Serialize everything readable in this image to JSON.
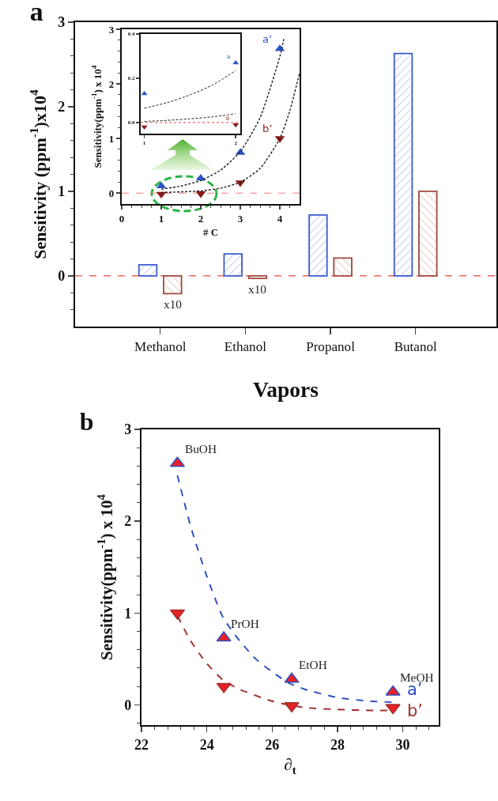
{
  "chart_data": [
    {
      "type": "bar",
      "title": "a",
      "xlabel": "Vapors",
      "ylabel": "Sensitivity (ppm$^{-1}$)x10$^{4}$",
      "categories": [
        "Methanol",
        "Ethanol",
        "Propanol",
        "Butanol"
      ],
      "series": [
        {
          "color": "#3b5bd0",
          "values": [
            0.13,
            0.26,
            0.72,
            2.63
          ]
        },
        {
          "color": "#a4473c",
          "values": [
            -0.21,
            -0.03,
            0.21,
            1.0
          ]
        }
      ],
      "ylim": [
        -0.6,
        3
      ],
      "yticks": [
        {
          "value": -0.4,
          "label": null
        },
        {
          "value": -0.2,
          "label": null
        },
        0,
        {
          "value": 0.2,
          "label": null
        },
        {
          "value": 0.4,
          "label": null
        },
        {
          "value": 0.6,
          "label": null
        },
        {
          "value": 0.8,
          "label": null
        },
        1,
        {
          "value": 1.2,
          "label": null
        },
        {
          "value": 1.4,
          "label": null
        },
        {
          "value": 1.6,
          "label": null
        },
        {
          "value": 1.8,
          "label": null
        },
        2,
        {
          "value": 2.2,
          "label": null
        },
        {
          "value": 2.4,
          "label": null
        },
        {
          "value": 2.6,
          "label": null
        },
        {
          "value": 2.8,
          "label": null
        },
        3
      ],
      "ref_lines": [
        {
          "axis": "y",
          "value": 0,
          "color": "#f0665c",
          "line_style": "dashed"
        }
      ],
      "annotations": [
        {
          "text": "x10",
          "x": "Methanol",
          "y": -0.21
        },
        {
          "text": "x10",
          "x": "Ethanol",
          "y": -0.03
        }
      ]
    },
    {
      "type": "scatter",
      "xlabel": "# C",
      "ylabel": "Sensitivity(ppm$^{-1}$) x 10$^{4}$",
      "marker": "triangle",
      "series": [
        {
          "name": "a’",
          "color": "#2f55c8",
          "x": [
            1,
            2,
            3,
            4
          ],
          "values": [
            0.13,
            0.27,
            0.74,
            2.64
          ]
        },
        {
          "name": "b’",
          "color": "#8b1a1a",
          "x": [
            1,
            2,
            3,
            4
          ],
          "values": [
            -0.02,
            -0.01,
            0.19,
            1.0
          ]
        },
        {
          "type": "line",
          "marker": "none",
          "color": "#222222",
          "line_style": "dashed",
          "x": [
            1,
            1.5,
            2,
            2.5,
            3,
            3.5,
            4,
            4.1
          ],
          "values": [
            0.07,
            0.13,
            0.23,
            0.42,
            0.76,
            1.38,
            2.5,
            2.82
          ]
        },
        {
          "type": "line",
          "marker": "none",
          "color": "#222222",
          "line_style": "dashed",
          "x": [
            1,
            2,
            2.5,
            3,
            3.5,
            4,
            4.25,
            4.5
          ],
          "values": [
            0.01,
            0.04,
            0.09,
            0.2,
            0.45,
            1.0,
            1.5,
            2.2
          ]
        }
      ],
      "xlim": [
        0,
        4.5
      ],
      "xticks": [
        0,
        {
          "value": 0.25,
          "label": null
        },
        {
          "value": 0.5,
          "label": null
        },
        {
          "value": 0.75,
          "label": null
        },
        1,
        {
          "value": 1.25,
          "label": null
        },
        {
          "value": 1.5,
          "label": null
        },
        {
          "value": 1.75,
          "label": null
        },
        2,
        {
          "value": 2.25,
          "label": null
        },
        {
          "value": 2.5,
          "label": null
        },
        {
          "value": 2.75,
          "label": null
        },
        3,
        {
          "value": 3.25,
          "label": null
        },
        {
          "value": 3.5,
          "label": null
        },
        {
          "value": 3.75,
          "label": null
        },
        4,
        {
          "value": 4.25,
          "label": null
        }
      ],
      "ylim": [
        -0.2,
        3
      ],
      "yticks": [
        0,
        {
          "value": 0.2,
          "label": null
        },
        {
          "value": 0.4,
          "label": null
        },
        {
          "value": 0.6,
          "label": null
        },
        {
          "value": 0.8,
          "label": null
        },
        1,
        {
          "value": 1.2,
          "label": null
        },
        {
          "value": 1.4,
          "label": null
        },
        {
          "value": 1.6,
          "label": null
        },
        {
          "value": 1.8,
          "label": null
        },
        2,
        {
          "value": 2.2,
          "label": null
        },
        {
          "value": 2.4,
          "label": null
        },
        {
          "value": 2.6,
          "label": null
        },
        {
          "value": 2.8,
          "label": null
        },
        3
      ],
      "ref_lines": [
        {
          "axis": "y",
          "value": 0,
          "color": "#f08080",
          "line_style": "dashed"
        }
      ]
    },
    {
      "type": "scatter",
      "marker": "triangle",
      "series": [
        {
          "name": "a",
          "color": "#2f55c8",
          "x": [
            1,
            2
          ],
          "values": [
            0.13,
            0.27
          ]
        },
        {
          "name": "b",
          "color": "#8b1a1a",
          "x": [
            1,
            2
          ],
          "values": [
            -0.02,
            -0.01
          ]
        },
        {
          "type": "line",
          "marker": "none",
          "color": "#222222",
          "line_style": "dashed",
          "x": [
            1,
            1.25,
            1.5,
            1.75,
            2
          ],
          "values": [
            0.065,
            0.09,
            0.125,
            0.17,
            0.235
          ]
        },
        {
          "type": "line",
          "marker": "none",
          "color": "#222222",
          "line_style": "dashed",
          "x": [
            1,
            1.25,
            1.5,
            1.75,
            2
          ],
          "values": [
            0.005,
            0.01,
            0.017,
            0.026,
            0.04
          ]
        }
      ],
      "xlim": [
        0.96,
        2.05
      ],
      "xticks": [
        1,
        2
      ],
      "ylim": [
        -0.05,
        0.4
      ],
      "yticks": [
        {
          "value": 0,
          "label": "0.0"
        },
        {
          "value": 0.2,
          "label": "0.2"
        },
        {
          "value": 0.4,
          "label": "0.4"
        }
      ],
      "ref_lines": [
        {
          "axis": "y",
          "value": 0,
          "color": "#f04040",
          "line_style": "dotted"
        }
      ]
    },
    {
      "type": "scatter",
      "title": "b",
      "xlabel": "∂$_{t}$",
      "ylabel": "Sensitivity(ppm$^{-1}$) x 10$^{4}$",
      "marker": "triangle",
      "series": [
        {
          "name": "a’",
          "color": "#3050c0",
          "colors": [
            "#e8202a",
            "#e8202a",
            "#e8202a",
            "#e8202a"
          ],
          "x": [
            23.1,
            24.52,
            26.6,
            29.7
          ],
          "values": [
            2.63,
            0.73,
            0.28,
            0.14
          ]
        },
        {
          "name": "b’",
          "color": "#a0302a",
          "colors": [
            "#e8202a",
            "#e8202a",
            "#e8202a",
            "#e8202a"
          ],
          "x": [
            23.1,
            24.52,
            26.6,
            29.7
          ],
          "values": [
            1.0,
            0.2,
            -0.01,
            -0.03
          ]
        },
        {
          "type": "line",
          "marker": "none",
          "color": "#3050c0",
          "line_style": "dashed",
          "x": [
            23.1,
            23.5,
            24,
            24.5,
            25,
            25.5,
            26,
            26.5,
            27,
            28,
            29,
            29.7
          ],
          "values": [
            2.5,
            1.95,
            1.4,
            0.95,
            0.7,
            0.5,
            0.36,
            0.24,
            0.17,
            0.08,
            0.04,
            0.03
          ]
        },
        {
          "type": "line",
          "marker": "none",
          "color": "#a0302a",
          "line_style": "dashed",
          "x": [
            23.1,
            23.5,
            24,
            24.5,
            25,
            26,
            26.5,
            27,
            28,
            29,
            29.7
          ],
          "values": [
            0.97,
            0.7,
            0.45,
            0.27,
            0.17,
            0.04,
            0.0,
            -0.03,
            -0.05,
            -0.06,
            -0.06
          ]
        }
      ],
      "xlim": [
        22,
        31.1
      ],
      "xticks": [
        22,
        {
          "value": 22.4,
          "label": null
        },
        {
          "value": 22.8,
          "label": null
        },
        {
          "value": 23.2,
          "label": null
        },
        {
          "value": 23.6,
          "label": null
        },
        24,
        {
          "value": 24.4,
          "label": null
        },
        {
          "value": 24.8,
          "label": null
        },
        {
          "value": 25.2,
          "label": null
        },
        {
          "value": 25.6,
          "label": null
        },
        26,
        {
          "value": 26.4,
          "label": null
        },
        {
          "value": 26.8,
          "label": null
        },
        {
          "value": 27.2,
          "label": null
        },
        {
          "value": 27.6,
          "label": null
        },
        28,
        {
          "value": 28.4,
          "label": null
        },
        {
          "value": 28.8,
          "label": null
        },
        {
          "value": 29.2,
          "label": null
        },
        {
          "value": 29.6,
          "label": null
        },
        30,
        {
          "value": 30.4,
          "label": null
        },
        {
          "value": 30.8,
          "label": null
        }
      ],
      "ylim": [
        -0.22,
        3
      ],
      "yticks": [
        {
          "value": -0.2,
          "label": null
        },
        0,
        {
          "value": 0.2,
          "label": null
        },
        {
          "value": 0.4,
          "label": null
        },
        {
          "value": 0.6,
          "label": null
        },
        {
          "value": 0.8,
          "label": null
        },
        1,
        {
          "value": 1.2,
          "label": null
        },
        {
          "value": 1.4,
          "label": null
        },
        {
          "value": 1.6,
          "label": null
        },
        {
          "value": 1.8,
          "label": null
        },
        2,
        {
          "value": 2.2,
          "label": null
        },
        {
          "value": 2.4,
          "label": null
        },
        {
          "value": 2.6,
          "label": null
        },
        {
          "value": 2.8,
          "label": null
        },
        3
      ],
      "annotations": [
        {
          "text": "BuOH",
          "x": 23.1,
          "y": 2.63
        },
        {
          "text": "PrOH",
          "x": 24.52,
          "y": 0.73
        },
        {
          "text": "EtOH",
          "x": 26.6,
          "y": 0.28
        },
        {
          "text": "MeOH",
          "x": 29.7,
          "y": 0.14
        }
      ]
    }
  ]
}
